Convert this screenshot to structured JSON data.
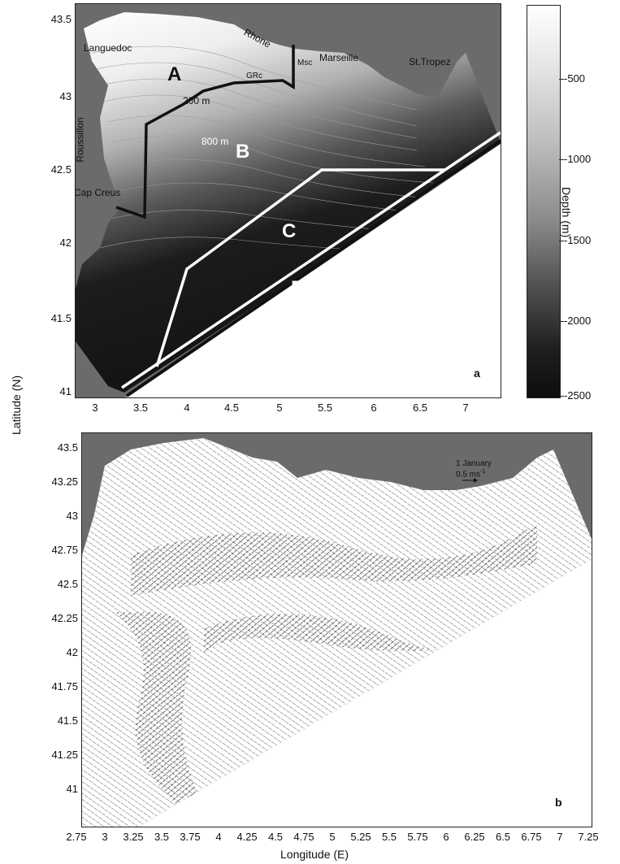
{
  "panel_a": {
    "label": "a",
    "y_ticks": [
      "43.5",
      "43",
      "42.5",
      "42",
      "41.5",
      "41"
    ],
    "x_ticks": [
      "3",
      "3.5",
      "4",
      "4.5",
      "5",
      "5.5",
      "6",
      "6.5",
      "7"
    ],
    "region_labels": {
      "a": "A",
      "b": "B",
      "c": "C",
      "d": "D"
    },
    "place_labels": {
      "languedoc": "Languedoc",
      "rhone": "Rhone",
      "marseille": "Marseille",
      "st_tropez": "St.Tropez",
      "roussillon": "Roussillon",
      "cap_creus": "Cap Creus",
      "grc": "GRc",
      "msc": "Msc"
    },
    "isobaths": {
      "shallow": "200 m",
      "deep": "800 m"
    }
  },
  "colorbar": {
    "title": "Depth (m)",
    "ticks": [
      "-500",
      "-1000",
      "-1500",
      "-2000",
      "-2500"
    ]
  },
  "panel_b": {
    "label": "b",
    "y_ticks": [
      "43.5",
      "43.25",
      "43",
      "42.75",
      "42.5",
      "42.25",
      "42",
      "41.75",
      "41.5",
      "41.25",
      "41"
    ],
    "x_ticks": [
      "2.75",
      "3",
      "3.25",
      "3.5",
      "3.75",
      "4",
      "4.25",
      "4.5",
      "4.75",
      "5",
      "5.25",
      "5.5",
      "5.75",
      "6",
      "6.25",
      "6.5",
      "6.75",
      "7",
      "7.25"
    ],
    "date": "1 January",
    "scale_label": "0.5 ms",
    "scale_exp": "-1"
  },
  "axes": {
    "y_title": "Latitude (N)",
    "x_title": "Longitude (E)"
  },
  "colors": {
    "land": "#6b6b6b",
    "deep_sea": "#141414",
    "boundary_a": "#111111",
    "boundary_c": "#ffffff"
  }
}
